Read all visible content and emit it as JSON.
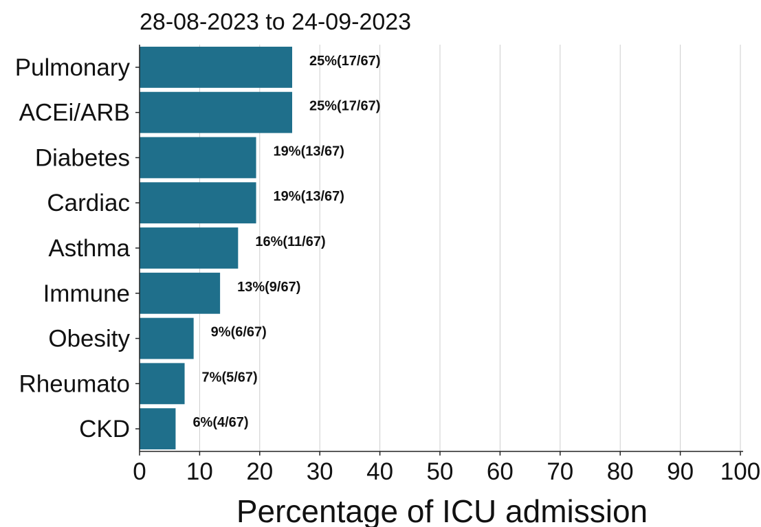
{
  "chart_data": {
    "type": "bar",
    "orientation": "horizontal",
    "title": "28-08-2023 to 24-09-2023",
    "xlabel": "Percentage of ICU admission",
    "ylabel": "",
    "xlim": [
      0,
      100
    ],
    "xticks": [
      0,
      10,
      20,
      30,
      40,
      50,
      60,
      70,
      80,
      90,
      100
    ],
    "grid": "vertical",
    "bar_color": "#1f6f8b",
    "categories": [
      "Pulmonary",
      "ACEi/ARB",
      "Diabetes",
      "Cardiac",
      "Asthma",
      "Immune",
      "Obesity",
      "Rheumato",
      "CKD"
    ],
    "values": [
      25.4,
      25.4,
      19.4,
      19.4,
      16.4,
      13.4,
      9.0,
      7.5,
      6.0
    ],
    "data_labels": [
      "25%(17/67)",
      "25%(17/67)",
      "19%(13/67)",
      "19%(13/67)",
      "16%(11/67)",
      "13%(9/67)",
      "9%(6/67)",
      "7%(5/67)",
      "6%(4/67)"
    ]
  }
}
